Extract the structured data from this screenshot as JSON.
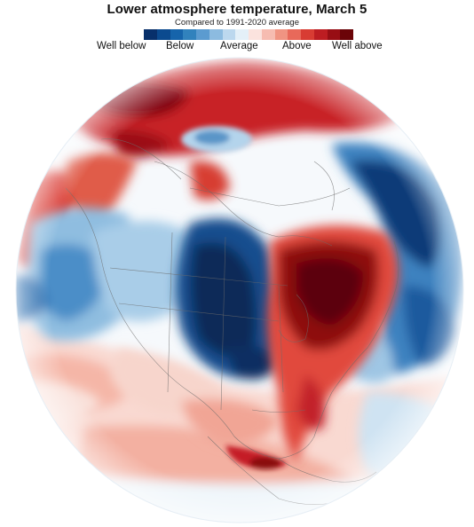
{
  "header": {
    "title": "Lower atmosphere temperature, March 5",
    "subtitle": "Compared to 1991-2020 average"
  },
  "legend": {
    "swatches": [
      "#08306b",
      "#0b4a8f",
      "#1664ab",
      "#3182bd",
      "#5b9bd0",
      "#8cbbe0",
      "#bcd8ee",
      "#e4f0f8",
      "#fbe3de",
      "#f6bcb1",
      "#f09482",
      "#e8695a",
      "#d83c33",
      "#bd1d22",
      "#980e14",
      "#6b0408"
    ],
    "labels": [
      "Well below",
      "Below",
      "Average",
      "Above",
      "Well above"
    ]
  },
  "colors": {
    "deep_blue": "#0a2f62",
    "mid_blue": "#3f86c2",
    "light_blue": "#9cc7e4",
    "pale": "#f4f8fb",
    "pale_red": "#f7c9be",
    "red": "#e0483a",
    "dark_red": "#6b0408"
  }
}
